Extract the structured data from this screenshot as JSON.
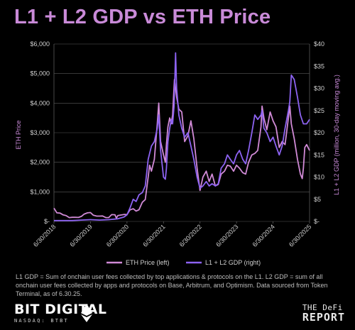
{
  "title": "L1 + L2 GDP vs ETH Price",
  "footnote": "L1 GDP = Sum of onchain user fees collected by top applications & protocols on the L1. L2 GDP = sum of all onchain user fees collected by apps and protocols on Base, Arbitrum, and Optimism. Data sourced from Token Terminal, as of 6.30.25.",
  "branding": {
    "left_name": "BIT DIGITAL",
    "left_sub": "NASDAQ: BTBT",
    "right_top": "THE DeFi",
    "right_bottom": "REPORT"
  },
  "colors": {
    "background": "#000000",
    "title": "#c98ad8",
    "eth_series": "#d08ad6",
    "gdp_series": "#8d63f2",
    "grid": "#5a5a5a",
    "text": "#cfcfcf"
  },
  "chart_data": {
    "type": "line",
    "ylabel": "ETH Price",
    "y2label": "L1 + L2 GDP (million, 30-day moving avg.)",
    "ylim": [
      0,
      6000
    ],
    "y2lim": [
      0,
      40
    ],
    "yticks": [
      "$-",
      "$1,000",
      "$2,000",
      "$3,000",
      "$4,000",
      "$5,000",
      "$6,000"
    ],
    "y2ticks": [
      "$-",
      "$5",
      "$10",
      "$15",
      "$20",
      "$25",
      "$30",
      "$35",
      "$40"
    ],
    "xticks": [
      "6/30/2018",
      "6/30/2019",
      "6/30/2020",
      "6/30/2021",
      "6/30/2022",
      "6/30/2023",
      "6/30/2024",
      "6/30/2025"
    ],
    "grid": true,
    "legend_position": "bottom",
    "series": [
      {
        "name": "ETH Price (left)",
        "axis": "left",
        "x": [
          2018.5,
          2018.58,
          2018.67,
          2018.75,
          2018.83,
          2018.92,
          2019.0,
          2019.08,
          2019.17,
          2019.25,
          2019.33,
          2019.42,
          2019.5,
          2019.58,
          2019.67,
          2019.75,
          2019.83,
          2019.92,
          2020.0,
          2020.08,
          2020.17,
          2020.21,
          2020.25,
          2020.33,
          2020.42,
          2020.5,
          2020.58,
          2020.67,
          2020.75,
          2020.83,
          2020.92,
          2021.0,
          2021.08,
          2021.12,
          2021.17,
          2021.25,
          2021.33,
          2021.37,
          2021.42,
          2021.5,
          2021.55,
          2021.58,
          2021.62,
          2021.67,
          2021.71,
          2021.75,
          2021.8,
          2021.86,
          2021.92,
          2022.0,
          2022.08,
          2022.17,
          2022.25,
          2022.33,
          2022.42,
          2022.5,
          2022.58,
          2022.67,
          2022.75,
          2022.83,
          2022.92,
          2023.0,
          2023.08,
          2023.17,
          2023.25,
          2023.33,
          2023.42,
          2023.5,
          2023.58,
          2023.67,
          2023.75,
          2023.83,
          2023.92,
          2024.0,
          2024.08,
          2024.17,
          2024.2,
          2024.25,
          2024.33,
          2024.42,
          2024.5,
          2024.58,
          2024.67,
          2024.75,
          2024.83,
          2024.92,
          2024.96,
          2025.0,
          2025.08,
          2025.17,
          2025.25,
          2025.3,
          2025.33,
          2025.37,
          2025.42,
          2025.46,
          2025.5
        ],
        "y": [
          450,
          290,
          280,
          220,
          200,
          130,
          140,
          140,
          135,
          170,
          250,
          290,
          300,
          210,
          180,
          180,
          185,
          130,
          130,
          230,
          225,
          110,
          200,
          215,
          235,
          230,
          390,
          430,
          350,
          395,
          650,
          740,
          1500,
          1900,
          1700,
          2100,
          3300,
          4000,
          2700,
          2250,
          2000,
          2600,
          3200,
          3500,
          3300,
          3600,
          4800,
          4200,
          3800,
          3700,
          2700,
          2900,
          3400,
          2800,
          1800,
          1050,
          1500,
          1700,
          1350,
          1600,
          1200,
          1250,
          1600,
          1700,
          1900,
          1870,
          1700,
          1900,
          1800,
          1650,
          1600,
          2000,
          2250,
          2300,
          2400,
          3200,
          3900,
          3500,
          3100,
          3700,
          3400,
          3200,
          2500,
          2700,
          2600,
          3500,
          3900,
          3300,
          2800,
          2100,
          1600,
          1450,
          1800,
          2500,
          2600,
          2500,
          2400
        ]
      },
      {
        "name": "L1 + L2 GDP (right)",
        "axis": "right",
        "x": [
          2018.5,
          2018.75,
          2019.0,
          2019.25,
          2019.5,
          2019.75,
          2020.0,
          2020.25,
          2020.42,
          2020.5,
          2020.58,
          2020.67,
          2020.75,
          2020.83,
          2020.92,
          2021.0,
          2021.08,
          2021.17,
          2021.25,
          2021.33,
          2021.37,
          2021.42,
          2021.5,
          2021.55,
          2021.58,
          2021.62,
          2021.67,
          2021.71,
          2021.75,
          2021.79,
          2021.83,
          2021.86,
          2021.92,
          2022.0,
          2022.08,
          2022.17,
          2022.25,
          2022.33,
          2022.42,
          2022.5,
          2022.58,
          2022.67,
          2022.75,
          2022.83,
          2022.92,
          2023.0,
          2023.08,
          2023.17,
          2023.25,
          2023.33,
          2023.42,
          2023.5,
          2023.58,
          2023.67,
          2023.75,
          2023.83,
          2023.92,
          2024.0,
          2024.08,
          2024.17,
          2024.2,
          2024.25,
          2024.33,
          2024.42,
          2024.5,
          2024.58,
          2024.67,
          2024.75,
          2024.83,
          2024.92,
          2024.96,
          2025.0,
          2025.08,
          2025.17,
          2025.25,
          2025.33,
          2025.42,
          2025.5
        ],
        "y": [
          0.2,
          0.2,
          0.2,
          0.3,
          0.4,
          0.3,
          0.4,
          0.6,
          1.0,
          1.5,
          3.0,
          5.0,
          4.5,
          6.0,
          6.5,
          8.0,
          14.0,
          17.0,
          18.0,
          21.0,
          24.0,
          16.0,
          10.0,
          9.5,
          12.0,
          18.0,
          21.0,
          23.0,
          22.0,
          26.0,
          38.0,
          30.0,
          24.0,
          21.0,
          19.0,
          20.0,
          17.0,
          14.0,
          10.0,
          7.5,
          8.0,
          9.0,
          8.0,
          8.5,
          8.0,
          8.5,
          12.0,
          13.0,
          15.0,
          14.0,
          13.0,
          15.0,
          16.0,
          14.0,
          13.0,
          16.0,
          20.0,
          24.0,
          23.0,
          24.0,
          25.0,
          21.0,
          20.0,
          18.0,
          19.0,
          17.0,
          15.0,
          17.0,
          21.0,
          25.0,
          27.0,
          33.0,
          32.0,
          28.0,
          24.0,
          22.0,
          22.0,
          23.0
        ]
      }
    ]
  }
}
